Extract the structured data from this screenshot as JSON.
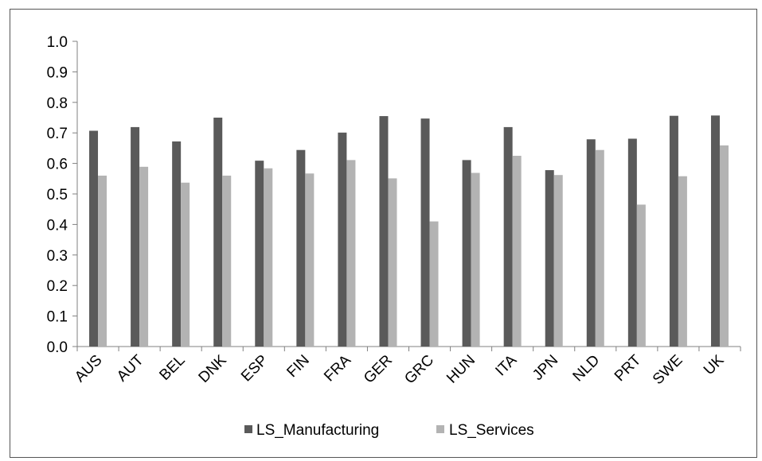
{
  "chart_data": {
    "type": "bar",
    "title": "",
    "xlabel": "",
    "ylabel": "",
    "ylim": [
      0,
      1.0
    ],
    "yticks": [
      "0.0",
      "0.1",
      "0.2",
      "0.3",
      "0.4",
      "0.5",
      "0.6",
      "0.7",
      "0.8",
      "0.9",
      "1.0"
    ],
    "grid": false,
    "legend": "bottom",
    "categories": [
      "AUS",
      "AUT",
      "BEL",
      "DNK",
      "ESP",
      "FIN",
      "FRA",
      "GER",
      "GRC",
      "HUN",
      "ITA",
      "JPN",
      "NLD",
      "PRT",
      "SWE",
      "UK"
    ],
    "series": [
      {
        "name": "LS_Manufacturing",
        "color": "#5a5a5a",
        "values": [
          0.707,
          0.719,
          0.672,
          0.75,
          0.609,
          0.644,
          0.701,
          0.755,
          0.747,
          0.611,
          0.719,
          0.578,
          0.679,
          0.681,
          0.756,
          0.757
        ]
      },
      {
        "name": "LS_Services",
        "color": "#b3b3b3",
        "values": [
          0.56,
          0.589,
          0.537,
          0.56,
          0.584,
          0.567,
          0.611,
          0.551,
          0.41,
          0.569,
          0.625,
          0.562,
          0.644,
          0.465,
          0.558,
          0.659
        ]
      }
    ]
  }
}
